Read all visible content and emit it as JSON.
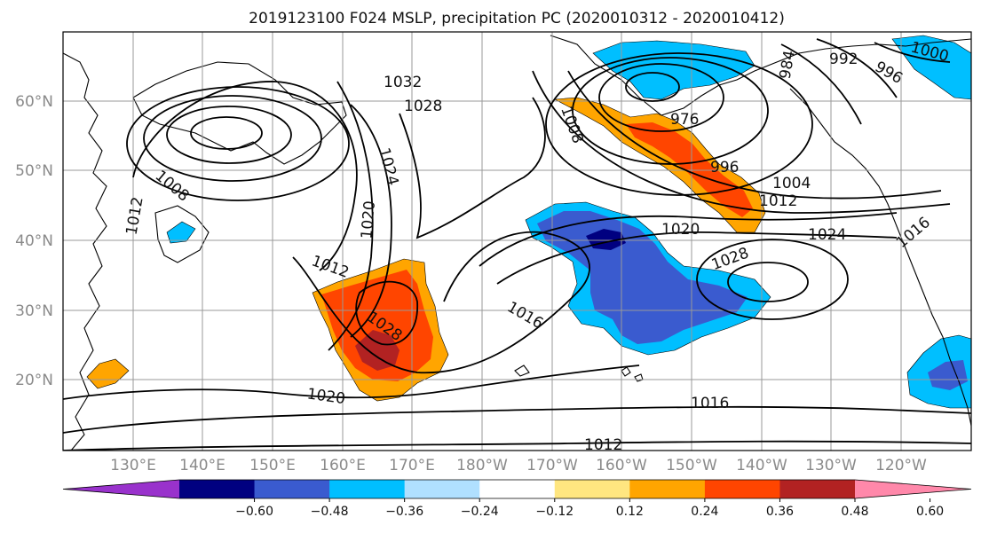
{
  "title": "2019123100 F024 MSLP, precipitation PC (2020010312 - 2020010412)",
  "lat_ticks": [
    "60°N",
    "50°N",
    "40°N",
    "30°N",
    "20°N"
  ],
  "lon_ticks": [
    "130°E",
    "140°E",
    "150°E",
    "160°E",
    "170°E",
    "180°W",
    "170°W",
    "160°W",
    "150°W",
    "140°W",
    "130°W",
    "120°W"
  ],
  "isobar_labels": [
    "1032",
    "1028",
    "1024",
    "1020",
    "1012",
    "1008",
    "1028",
    "1016",
    "1020",
    "1016",
    "1012",
    "1004",
    "1012",
    "1020",
    "1024",
    "1028",
    "996",
    "976",
    "984",
    "992",
    "996",
    "1000",
    "1008",
    "1012",
    "1016"
  ],
  "colorbar": {
    "tick_labels": [
      "−0.60",
      "−0.48",
      "−0.36",
      "−0.24",
      "−0.12",
      "0.12",
      "0.24",
      "0.36",
      "0.48",
      "0.60"
    ],
    "colors": [
      "#9932cc",
      "#000080",
      "#3a5bcf",
      "#00bfff",
      "#b0e0ff",
      "#ffffff",
      "#ffe680",
      "#ffa500",
      "#ff4500",
      "#b22222",
      "#ff88aa"
    ]
  },
  "colors": {
    "land": "#ffffff",
    "grid": "#999999",
    "isobar": "#000000",
    "coast": "#000000"
  }
}
